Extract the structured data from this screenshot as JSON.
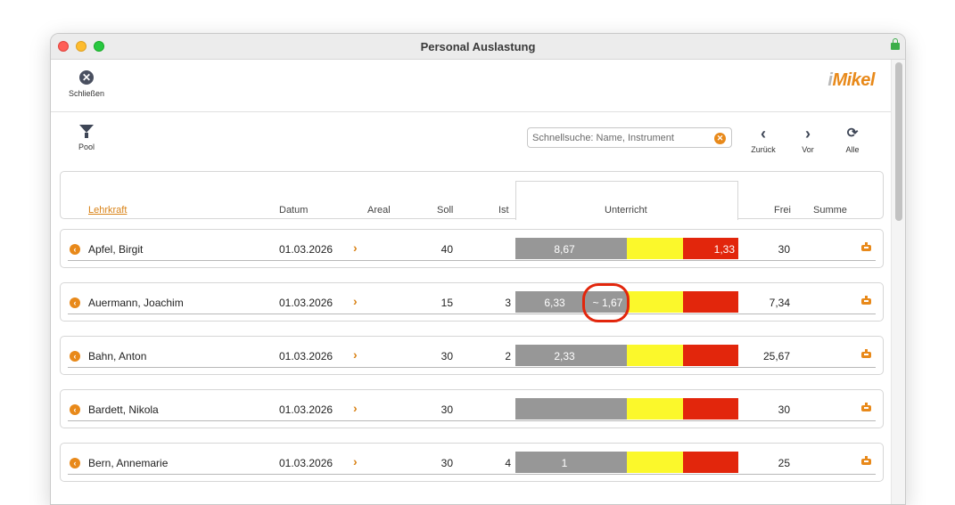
{
  "window": {
    "title": "Personal Auslastung"
  },
  "toolbar": {
    "close_label": "Schließen",
    "logo_i": "i",
    "logo_text": "Mikel"
  },
  "filter": {
    "pool_label": "Pool"
  },
  "search": {
    "placeholder": "Schnellsuche: Name, Instrument",
    "value": ""
  },
  "nav": {
    "back_label": "Zurück",
    "forward_label": "Vor",
    "all_label": "Alle"
  },
  "table": {
    "headers": {
      "lehrkraft": "Lehrkraft",
      "datum": "Datum",
      "areal": "Areal",
      "soll": "Soll",
      "ist": "Ist",
      "unterricht": "Unterricht",
      "frei": "Frei",
      "summe": "Summe"
    },
    "rows": [
      {
        "name": "Apfel, Birgit",
        "datum": "01.03.2026",
        "soll": "40",
        "ist": "",
        "grey": "8,67",
        "grey2": "",
        "red": "1,33",
        "frei": "30"
      },
      {
        "name": "Auermann, Joachim",
        "datum": "01.03.2026",
        "soll": "15",
        "ist": "3",
        "grey": "6,33",
        "grey2": "~ 1,67",
        "red": "",
        "frei": "7,34"
      },
      {
        "name": "Bahn, Anton",
        "datum": "01.03.2026",
        "soll": "30",
        "ist": "2",
        "grey": "2,33",
        "grey2": "",
        "red": "",
        "frei": "25,67"
      },
      {
        "name": "Bardett, Nikola",
        "datum": "01.03.2026",
        "soll": "30",
        "ist": "",
        "grey": "",
        "grey2": "",
        "red": "",
        "frei": "30"
      },
      {
        "name": "Bern, Annemarie",
        "datum": "01.03.2026",
        "soll": "30",
        "ist": "4",
        "grey": "1",
        "grey2": "",
        "red": "",
        "frei": "25"
      }
    ]
  },
  "colors": {
    "accent": "#e8891a",
    "bar_grey": "#979797",
    "bar_yellow": "#fbf82b",
    "bar_red": "#e2260c"
  },
  "icons": {
    "close": "close-icon",
    "filter": "funnel-icon",
    "clear": "clear-search-icon",
    "back": "chevron-left-icon",
    "forward": "chevron-right-icon",
    "refresh": "refresh-icon",
    "goto": "arrow-circle-icon",
    "areal": "chevron-right-icon",
    "summe": "robot-icon"
  }
}
